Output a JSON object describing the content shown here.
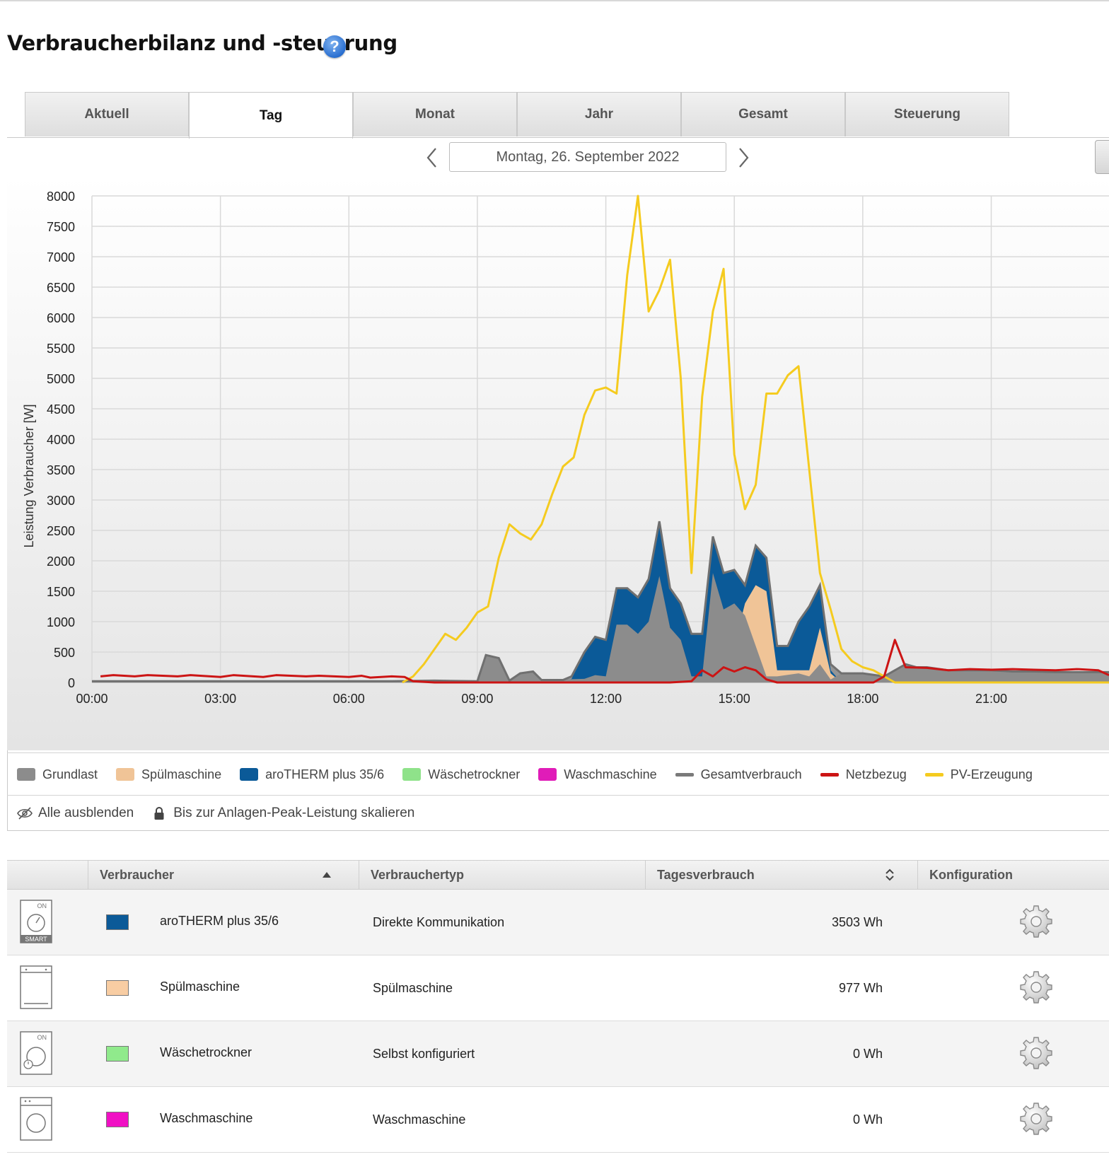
{
  "page": {
    "title": "Verbraucherbilanz und -steuerung",
    "help_glyph": "?"
  },
  "tabs": [
    {
      "label": "Aktuell"
    },
    {
      "label": "Tag",
      "active": true
    },
    {
      "label": "Monat"
    },
    {
      "label": "Jahr"
    },
    {
      "label": "Gesamt"
    },
    {
      "label": "Steuerung"
    }
  ],
  "date_nav": {
    "date": "Montag, 26. September 2022",
    "prev_icon": "chevron-left-icon",
    "next_icon": "chevron-right-icon"
  },
  "chart_data": {
    "type": "area",
    "ylabel": "Leistung Verbraucher [W]",
    "ylim": [
      0,
      8000
    ],
    "yticks": [
      0,
      500,
      1000,
      1500,
      2000,
      2500,
      3000,
      3500,
      4000,
      4500,
      5000,
      5500,
      6000,
      6500,
      7000,
      7500,
      8000
    ],
    "xlim": [
      0,
      23.75
    ],
    "xticks": [
      "00:00",
      "03:00",
      "06:00",
      "09:00",
      "12:00",
      "15:00",
      "18:00",
      "21:00"
    ],
    "grid": true,
    "series": [
      {
        "name": "Gesamtverbrauch",
        "kind": "area",
        "color": "#8c8c8c",
        "points": [
          [
            0,
            20
          ],
          [
            7.0,
            20
          ],
          [
            8.0,
            30
          ],
          [
            9.0,
            20
          ],
          [
            9.2,
            450
          ],
          [
            9.5,
            400
          ],
          [
            9.75,
            30
          ],
          [
            10.0,
            150
          ],
          [
            10.3,
            180
          ],
          [
            10.5,
            40
          ],
          [
            11.0,
            40
          ],
          [
            11.2,
            100
          ],
          [
            11.5,
            500
          ],
          [
            11.75,
            750
          ],
          [
            12.0,
            700
          ],
          [
            12.25,
            1550
          ],
          [
            12.5,
            1550
          ],
          [
            12.75,
            1400
          ],
          [
            13.0,
            1700
          ],
          [
            13.25,
            2650
          ],
          [
            13.5,
            1550
          ],
          [
            13.75,
            1300
          ],
          [
            14.0,
            800
          ],
          [
            14.25,
            800
          ],
          [
            14.5,
            2400
          ],
          [
            14.75,
            1800
          ],
          [
            15.0,
            1850
          ],
          [
            15.25,
            1600
          ],
          [
            15.5,
            2250
          ],
          [
            15.75,
            2050
          ],
          [
            16.0,
            600
          ],
          [
            16.25,
            600
          ],
          [
            16.5,
            1000
          ],
          [
            16.75,
            1250
          ],
          [
            17.0,
            1600
          ],
          [
            17.25,
            300
          ],
          [
            17.5,
            150
          ],
          [
            18.0,
            150
          ],
          [
            18.5,
            100
          ],
          [
            18.75,
            200
          ],
          [
            19.0,
            300
          ],
          [
            19.25,
            250
          ],
          [
            19.5,
            250
          ],
          [
            20.0,
            200
          ],
          [
            20.5,
            200
          ],
          [
            21.0,
            200
          ],
          [
            21.5,
            180
          ],
          [
            22.0,
            180
          ],
          [
            22.5,
            170
          ],
          [
            23.0,
            170
          ],
          [
            23.75,
            170
          ]
        ]
      },
      {
        "name": "aroTHERM plus 35/6",
        "kind": "area",
        "color": "#0b5a98",
        "points": [
          [
            11.0,
            0
          ],
          [
            11.2,
            60
          ],
          [
            11.5,
            500
          ],
          [
            11.75,
            750
          ],
          [
            12.0,
            700
          ],
          [
            12.25,
            1550
          ],
          [
            12.5,
            1550
          ],
          [
            12.75,
            1400
          ],
          [
            13.0,
            1700
          ],
          [
            13.25,
            2650
          ],
          [
            13.5,
            1550
          ],
          [
            13.75,
            1300
          ],
          [
            14.0,
            800
          ],
          [
            14.25,
            800
          ],
          [
            14.5,
            2400
          ],
          [
            14.75,
            1800
          ],
          [
            15.0,
            1850
          ],
          [
            15.25,
            1600
          ],
          [
            15.5,
            2250
          ],
          [
            15.75,
            2050
          ],
          [
            16.0,
            600
          ],
          [
            16.25,
            600
          ],
          [
            16.5,
            1000
          ],
          [
            16.75,
            1250
          ],
          [
            17.0,
            1600
          ],
          [
            17.25,
            200
          ],
          [
            17.5,
            0
          ]
        ]
      },
      {
        "name": "Spülmaschine",
        "kind": "area",
        "color": "#f0c497",
        "points": [
          [
            14.75,
            0
          ],
          [
            15.0,
            600
          ],
          [
            15.25,
            1300
          ],
          [
            15.5,
            1600
          ],
          [
            15.75,
            1500
          ],
          [
            16.0,
            200
          ],
          [
            16.5,
            200
          ],
          [
            16.75,
            200
          ],
          [
            17.0,
            900
          ],
          [
            17.25,
            150
          ],
          [
            17.5,
            0
          ]
        ]
      },
      {
        "name": "Grundlast",
        "kind": "area",
        "color": "#8c8c8c",
        "points": [
          [
            0,
            20
          ],
          [
            9.0,
            20
          ],
          [
            9.2,
            450
          ],
          [
            9.5,
            400
          ],
          [
            9.75,
            30
          ],
          [
            10.0,
            150
          ],
          [
            10.3,
            180
          ],
          [
            10.5,
            40
          ],
          [
            11.5,
            60
          ],
          [
            11.75,
            120
          ],
          [
            12.0,
            100
          ],
          [
            12.25,
            950
          ],
          [
            12.5,
            950
          ],
          [
            12.75,
            800
          ],
          [
            13.0,
            1000
          ],
          [
            13.25,
            1750
          ],
          [
            13.5,
            900
          ],
          [
            13.75,
            700
          ],
          [
            14.0,
            100
          ],
          [
            14.25,
            100
          ],
          [
            14.5,
            1800
          ],
          [
            14.75,
            1200
          ],
          [
            15.0,
            1300
          ],
          [
            15.25,
            1100
          ],
          [
            15.5,
            600
          ],
          [
            15.75,
            100
          ],
          [
            16.0,
            100
          ],
          [
            16.5,
            150
          ],
          [
            16.75,
            100
          ],
          [
            17.0,
            300
          ],
          [
            17.25,
            50
          ],
          [
            17.5,
            150
          ],
          [
            18.0,
            150
          ],
          [
            18.5,
            100
          ],
          [
            18.75,
            200
          ],
          [
            19.0,
            300
          ],
          [
            19.25,
            250
          ],
          [
            19.5,
            250
          ],
          [
            20.0,
            200
          ],
          [
            20.5,
            200
          ],
          [
            21.0,
            200
          ],
          [
            21.5,
            180
          ],
          [
            22.0,
            180
          ],
          [
            22.5,
            170
          ],
          [
            23.0,
            170
          ],
          [
            23.75,
            170
          ]
        ]
      },
      {
        "name": "Wäschetrockner",
        "kind": "area",
        "color": "#8fe28a",
        "points": [
          [
            0,
            0
          ],
          [
            23.75,
            0
          ]
        ]
      },
      {
        "name": "Waschmaschine",
        "kind": "area",
        "color": "#e01cb8",
        "points": [
          [
            0,
            0
          ],
          [
            23.75,
            0
          ]
        ]
      },
      {
        "name": "PV-Erzeugung",
        "kind": "line",
        "color": "#f5cb1f",
        "points": [
          [
            7.25,
            0
          ],
          [
            7.5,
            100
          ],
          [
            7.75,
            300
          ],
          [
            8.0,
            550
          ],
          [
            8.25,
            800
          ],
          [
            8.5,
            700
          ],
          [
            8.75,
            900
          ],
          [
            9.0,
            1150
          ],
          [
            9.25,
            1250
          ],
          [
            9.5,
            2050
          ],
          [
            9.75,
            2600
          ],
          [
            10.0,
            2450
          ],
          [
            10.25,
            2350
          ],
          [
            10.5,
            2600
          ],
          [
            10.75,
            3100
          ],
          [
            11.0,
            3550
          ],
          [
            11.25,
            3700
          ],
          [
            11.5,
            4400
          ],
          [
            11.75,
            4800
          ],
          [
            12.0,
            4850
          ],
          [
            12.25,
            4750
          ],
          [
            12.5,
            6700
          ],
          [
            12.75,
            8000
          ],
          [
            13.0,
            6100
          ],
          [
            13.25,
            6450
          ],
          [
            13.5,
            6950
          ],
          [
            13.75,
            5000
          ],
          [
            14.0,
            1800
          ],
          [
            14.25,
            4700
          ],
          [
            14.5,
            6100
          ],
          [
            14.75,
            6800
          ],
          [
            15.0,
            3750
          ],
          [
            15.25,
            2850
          ],
          [
            15.5,
            3250
          ],
          [
            15.75,
            4750
          ],
          [
            16.0,
            4750
          ],
          [
            16.25,
            5050
          ],
          [
            16.5,
            5200
          ],
          [
            16.75,
            3500
          ],
          [
            17.0,
            1800
          ],
          [
            17.25,
            1200
          ],
          [
            17.5,
            550
          ],
          [
            17.75,
            350
          ],
          [
            18.0,
            250
          ],
          [
            18.25,
            200
          ],
          [
            18.5,
            100
          ],
          [
            18.75,
            0
          ],
          [
            23.75,
            0
          ]
        ]
      },
      {
        "name": "Netzbezug",
        "kind": "line",
        "color": "#cc1414",
        "points": [
          [
            0.2,
            100
          ],
          [
            0.5,
            120
          ],
          [
            1.0,
            100
          ],
          [
            1.3,
            120
          ],
          [
            2.0,
            100
          ],
          [
            2.3,
            120
          ],
          [
            3.0,
            90
          ],
          [
            3.3,
            120
          ],
          [
            4.0,
            90
          ],
          [
            4.3,
            120
          ],
          [
            5.0,
            100
          ],
          [
            5.3,
            110
          ],
          [
            6.0,
            90
          ],
          [
            6.3,
            110
          ],
          [
            6.5,
            80
          ],
          [
            7.0,
            100
          ],
          [
            7.3,
            90
          ],
          [
            7.5,
            20
          ],
          [
            8.0,
            0
          ],
          [
            13.5,
            0
          ],
          [
            14.0,
            20
          ],
          [
            14.25,
            200
          ],
          [
            14.5,
            100
          ],
          [
            14.75,
            250
          ],
          [
            15.0,
            180
          ],
          [
            15.25,
            250
          ],
          [
            15.5,
            200
          ],
          [
            15.75,
            50
          ],
          [
            16.0,
            0
          ],
          [
            18.25,
            0
          ],
          [
            18.5,
            100
          ],
          [
            18.75,
            700
          ],
          [
            19.0,
            250
          ],
          [
            19.5,
            240
          ],
          [
            20.0,
            200
          ],
          [
            20.5,
            220
          ],
          [
            21.0,
            210
          ],
          [
            21.5,
            220
          ],
          [
            22.0,
            210
          ],
          [
            22.5,
            200
          ],
          [
            23.0,
            220
          ],
          [
            23.5,
            200
          ],
          [
            23.75,
            120
          ]
        ]
      }
    ]
  },
  "legend": [
    {
      "label": "Grundlast",
      "color": "#8c8c8c",
      "kind": "box"
    },
    {
      "label": "Spülmaschine",
      "color": "#f0c497",
      "kind": "box"
    },
    {
      "label": "aroTHERM plus 35/6",
      "color": "#0b5a98",
      "kind": "box"
    },
    {
      "label": "Wäschetrockner",
      "color": "#8fe28a",
      "kind": "box"
    },
    {
      "label": "Waschmaschine",
      "color": "#e01cb8",
      "kind": "box"
    },
    {
      "label": "Gesamtverbrauch",
      "color": "#7a7a7a",
      "kind": "line"
    },
    {
      "label": "Netzbezug",
      "color": "#cc1414",
      "kind": "line"
    },
    {
      "label": "PV-Erzeugung",
      "color": "#f5cb1f",
      "kind": "line"
    }
  ],
  "options": {
    "hide_all": "Alle ausblenden",
    "scale_peak": "Bis zur Anlagen-Peak-Leistung skalieren"
  },
  "table": {
    "headers": {
      "consumer": "Verbraucher",
      "type": "Verbrauchertyp",
      "daily": "Tagesverbrauch",
      "config": "Konfiguration"
    },
    "rows": [
      {
        "icon": "smart-heatpump-icon",
        "icon_labels": [
          "ON",
          "SMART"
        ],
        "color": "#0b5a98",
        "name": "aroTHERM plus 35/6",
        "type": "Direkte Kommunikation",
        "value": "3503 Wh"
      },
      {
        "icon": "dishwasher-icon",
        "color": "#f8cda3",
        "name": "Spülmaschine",
        "type": "Spülmaschine",
        "value": "977 Wh"
      },
      {
        "icon": "dryer-icon",
        "icon_labels": [
          "ON"
        ],
        "color": "#90ea8c",
        "name": "Wäschetrockner",
        "type": "Selbst konfiguriert",
        "value": "0 Wh"
      },
      {
        "icon": "washing-machine-icon",
        "color": "#f010c4",
        "name": "Waschmaschine",
        "type": "Waschmaschine",
        "value": "0 Wh"
      }
    ]
  }
}
